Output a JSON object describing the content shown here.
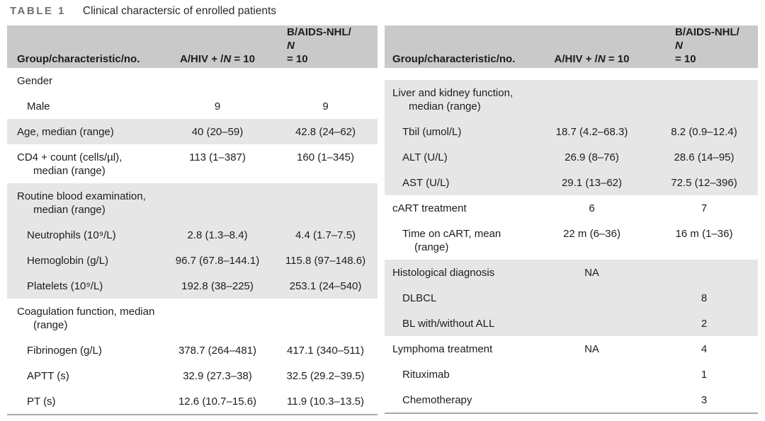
{
  "title": {
    "label": "TABLE 1",
    "caption": "Clinical charactersic of enrolled patients"
  },
  "colors": {
    "header_bg": "#c9c9c9",
    "band_bg": "#e6e6e6",
    "rule": "#a8a8a8",
    "text": "#1d1d1d",
    "title_label": "#6f6f6f"
  },
  "header": {
    "col1": "Group/characteristic/no.",
    "col2_prefix": "A/HIV + /",
    "col2_n": "N",
    "col2_suffix": " = 10",
    "col3_line1": "B/AIDS-NHL/",
    "col3_n": "N",
    "col3_suffix": " = 10"
  },
  "left_table": {
    "rows": [
      {
        "label": "Gender",
        "label2": "",
        "indent": 0,
        "a": "",
        "b": "",
        "shaded": false
      },
      {
        "label": "Male",
        "label2": "",
        "indent": 1,
        "a": "9",
        "b": "9",
        "shaded": false
      },
      {
        "label": "Age, median (range)",
        "label2": "",
        "indent": 0,
        "a": "40 (20–59)",
        "b": "42.8 (24–62)",
        "shaded": true
      },
      {
        "label": "CD4 + count (cells/µl),",
        "label2": "median (range)",
        "indent": 0,
        "a": "113 (1–387)",
        "b": "160 (1–345)",
        "shaded": false
      },
      {
        "label": "Routine blood examination,",
        "label2": "median (range)",
        "indent": 0,
        "a": "",
        "b": "",
        "shaded": true
      },
      {
        "label": "Neutrophils (10⁹/L)",
        "label2": "",
        "indent": 1,
        "a": "2.8 (1.3–8.4)",
        "b": "4.4 (1.7–7.5)",
        "shaded": true
      },
      {
        "label": "Hemoglobin (g/L)",
        "label2": "",
        "indent": 1,
        "a": "96.7 (67.8–144.1)",
        "b": "115.8 (97–148.6)",
        "shaded": true
      },
      {
        "label": "Platelets (10⁹/L)",
        "label2": "",
        "indent": 1,
        "a": "192.8 (38–225)",
        "b": "253.1 (24–540)",
        "shaded": true
      },
      {
        "label": "Coagulation function, median",
        "label2": "(range)",
        "indent": 0,
        "a": "",
        "b": "",
        "shaded": false
      },
      {
        "label": "Fibrinogen (g/L)",
        "label2": "",
        "indent": 1,
        "a": "378.7 (264–481)",
        "b": "417.1 (340–511)",
        "shaded": false
      },
      {
        "label": "APTT (s)",
        "label2": "",
        "indent": 1,
        "a": "32.9 (27.3–38)",
        "b": "32.5 (29.2–39.5)",
        "shaded": false
      },
      {
        "label": "PT (s)",
        "label2": "",
        "indent": 1,
        "a": "12.6 (10.7–15.6)",
        "b": "11.9 (10.3–13.5)",
        "shaded": false
      }
    ]
  },
  "right_table": {
    "rows": [
      {
        "label": "Liver and kidney function,",
        "label2": "median (range)",
        "indent": 0,
        "a": "",
        "b": "",
        "shaded": true
      },
      {
        "label": "Tbil (umol/L)",
        "label2": "",
        "indent": 1,
        "a": "18.7 (4.2–68.3)",
        "b": "8.2 (0.9–12.4)",
        "shaded": true
      },
      {
        "label": "ALT (U/L)",
        "label2": "",
        "indent": 1,
        "a": "26.9 (8–76)",
        "b": "28.6 (14–95)",
        "shaded": true
      },
      {
        "label": "AST (U/L)",
        "label2": "",
        "indent": 1,
        "a": "29.1 (13–62)",
        "b": "72.5 (12–396)",
        "shaded": true
      },
      {
        "label": "cART treatment",
        "label2": "",
        "indent": 0,
        "a": "6",
        "b": "7",
        "shaded": false
      },
      {
        "label": "Time on cART, mean",
        "label2": "(range)",
        "indent": 1,
        "a": "22 m (6–36)",
        "b": "16 m (1–36)",
        "shaded": false
      },
      {
        "label": "Histological diagnosis",
        "label2": "",
        "indent": 0,
        "a": "NA",
        "b": "",
        "shaded": true
      },
      {
        "label": "DLBCL",
        "label2": "",
        "indent": 1,
        "a": "",
        "b": "8",
        "shaded": true
      },
      {
        "label": "BL with/without ALL",
        "label2": "",
        "indent": 1,
        "a": "",
        "b": "2",
        "shaded": true
      },
      {
        "label": "Lymphoma treatment",
        "label2": "",
        "indent": 0,
        "a": "NA",
        "b": "4",
        "shaded": false
      },
      {
        "label": "Rituximab",
        "label2": "",
        "indent": 1,
        "a": "",
        "b": "1",
        "shaded": false
      },
      {
        "label": "Chemotherapy",
        "label2": "",
        "indent": 1,
        "a": "",
        "b": "3",
        "shaded": false
      }
    ]
  }
}
